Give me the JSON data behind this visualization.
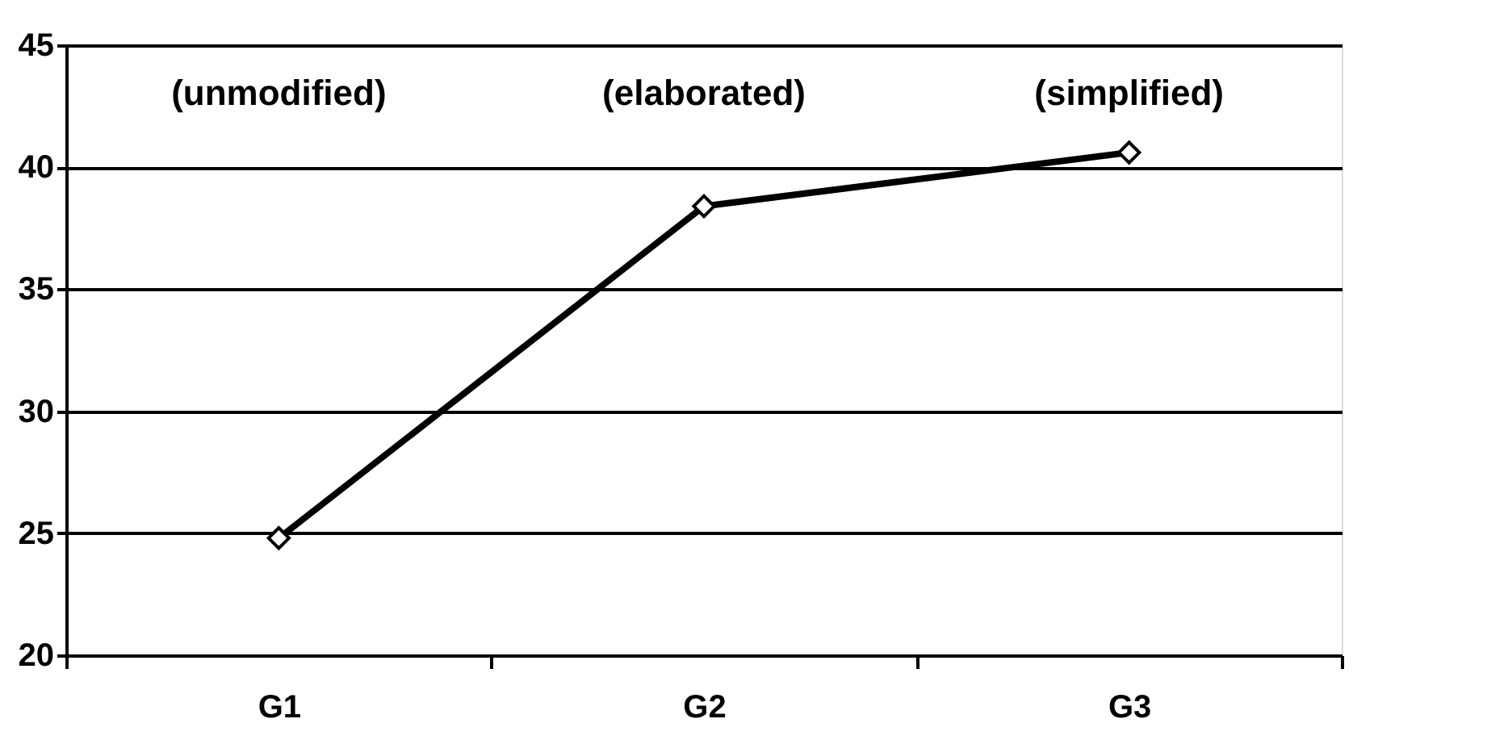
{
  "chart_data": {
    "type": "line",
    "categories": [
      "G1",
      "G2",
      "G3"
    ],
    "series": [
      {
        "color": "#000000",
        "values": [
          24.8,
          38.4,
          40.6
        ]
      }
    ],
    "ylim": [
      20,
      45
    ],
    "yticks": [
      20,
      25,
      30,
      35,
      40,
      45
    ],
    "grid": "y",
    "marker": "diamond",
    "line_style": "solid",
    "annotations": [
      "(unmodified)",
      "(elaborated)",
      "(simplified)"
    ]
  }
}
